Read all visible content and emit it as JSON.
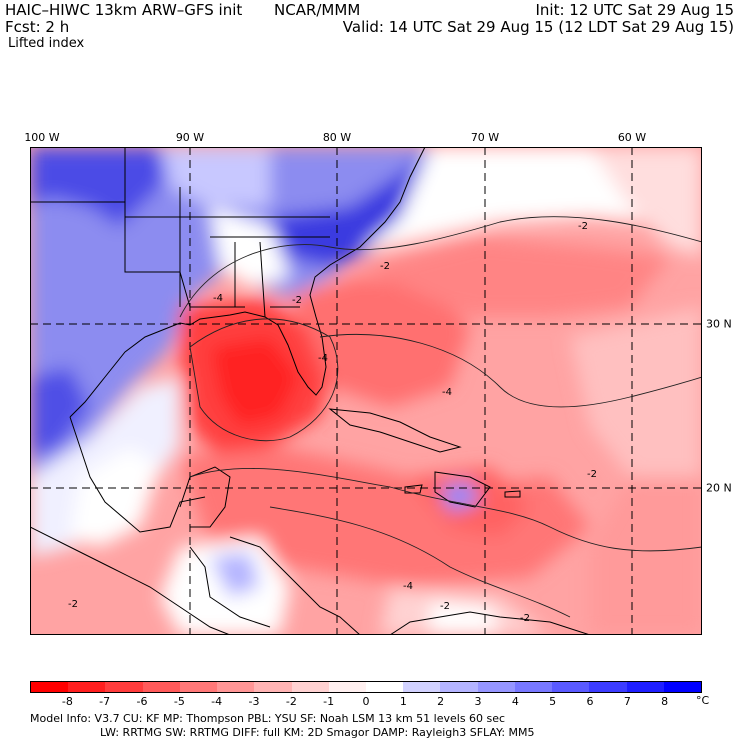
{
  "header": {
    "model_title": "HAIC–HIWC 13km ARW–GFS init",
    "org": "NCAR/MMM",
    "forecast": "Fcst:     2 h",
    "field": "Lifted index",
    "init": "Init: 12 UTC Sat 29 Aug 15",
    "valid": "Valid: 14 UTC Sat 29 Aug 15 (12 LDT Sat 29 Aug 15)"
  },
  "map": {
    "lon_labels": [
      "100 W",
      "90 W",
      "80 W",
      "70 W",
      "60 W"
    ],
    "lat_labels": [
      "30 N",
      "20 N"
    ],
    "contour_labels": [
      "-2",
      "-4",
      "-2",
      "-4",
      "-2",
      "-4",
      "-2",
      "-2",
      "-4",
      "-2",
      "-2"
    ]
  },
  "colorbar": {
    "ticks": [
      "-8",
      "-7",
      "-6",
      "-5",
      "-4",
      "-3",
      "-2",
      "-1",
      "0",
      "1",
      "2",
      "3",
      "4",
      "5",
      "6",
      "7",
      "8"
    ],
    "unit": "°C",
    "colors": [
      "#ff0000",
      "#ff1e1e",
      "#ff3c3c",
      "#ff5a5a",
      "#ff7878",
      "#ff9696",
      "#ffb4b4",
      "#ffd2d2",
      "#fff0f0",
      "#ffffff",
      "#d2d2ff",
      "#b4b4ff",
      "#9696ff",
      "#7878ff",
      "#5a5aff",
      "#3c3cff",
      "#1e1eff",
      "#0000ff"
    ]
  },
  "footer": {
    "line1": "Model Info: V3.7     CU: KF     MP: Thompson    PBL: YSU      SF: Noah LSM    13 km    51 levels   60 sec",
    "line2": "LW: RRTMG    SW: RRTMG   DIFF: full    KM: 2D Smagor DAMP: Rayleigh3   SFLAY: MM5"
  }
}
